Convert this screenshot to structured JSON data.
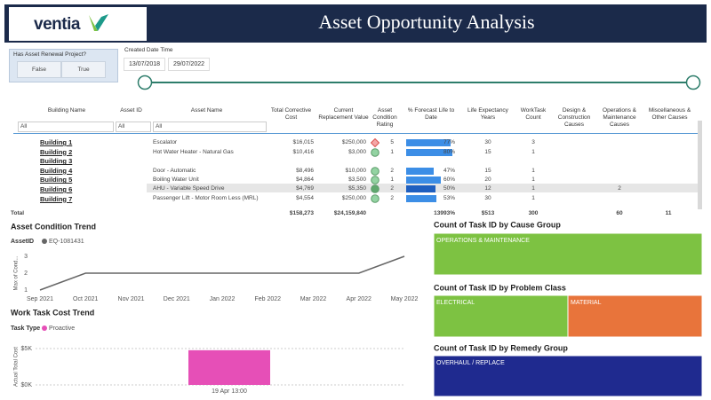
{
  "header": {
    "logo": "ventia",
    "title": "Asset Opportunity Analysis"
  },
  "renewal_slicer": {
    "label": "Has Asset Renewal Project?",
    "options": [
      "False",
      "True"
    ]
  },
  "date_slicer": {
    "label": "Created Date Time",
    "start": "13/07/2018",
    "end": "29/07/2022"
  },
  "table": {
    "columns": [
      "Building Name",
      "Asset ID",
      "Asset Name",
      "Total Corrective Cost",
      "Current Replacement Value",
      "Asset Condition Rating",
      "% Forecast Life to Date",
      "Life Expectancy Years",
      "WorkTask Count",
      "Design & Construction Causes",
      "Operations & Maintenance Causes",
      "Miscellaneous & Other Causes"
    ],
    "filters": [
      "All",
      "All",
      "All"
    ],
    "buildings": [
      "Building 1",
      "Building 2",
      "Building 3",
      "Building 4",
      "Building 5",
      "Building 6",
      "Building 7"
    ],
    "rows": [
      {
        "name": "Escalator",
        "cost": "$16,015",
        "replacement": "$250,000",
        "rating": 5,
        "forecast": {
          "value": 77,
          "label": "77%"
        },
        "life": "30",
        "count": "3"
      },
      {
        "name": "Hot Water Heater - Natural Gas",
        "cost": "$10,416",
        "replacement": "$3,000",
        "rating": 1,
        "forecast": {
          "value": 80,
          "label": "80%"
        },
        "life": "15",
        "count": "1"
      },
      {
        "name": "Door - Automatic",
        "cost": "$8,496",
        "replacement": "$10,000",
        "rating": 2,
        "forecast": {
          "value": 47,
          "label": "47%"
        },
        "life": "15",
        "count": "1"
      },
      {
        "name": "Boiling Water Unit",
        "cost": "$4,864",
        "replacement": "$3,500",
        "rating": 1,
        "forecast": {
          "value": 60,
          "label": "60%"
        },
        "life": "20",
        "count": "1"
      },
      {
        "name": "AHU - Variable Speed Drive",
        "cost": "$4,769",
        "replacement": "$5,350",
        "rating": 2,
        "forecast": {
          "value": 50,
          "label": "50%"
        },
        "life": "12",
        "count": "1",
        "ops": "2"
      },
      {
        "name": "Passenger Lift - Motor Room Less (MRL)",
        "cost": "$4,554",
        "replacement": "$250,000",
        "rating": 2,
        "forecast": {
          "value": 53,
          "label": "53%"
        },
        "life": "30",
        "count": "1"
      }
    ],
    "total": {
      "label": "Total",
      "cost": "$158,273",
      "replacement": "$24,159,840",
      "forecast": "13993%",
      "life": "$513",
      "count": "300",
      "ops": "60",
      "misc": "11"
    }
  },
  "chart_data": [
    {
      "type": "line",
      "title": "Asset Condition Trend",
      "legend_title": "AssetID",
      "y_label": "Max of Cond...",
      "categories": [
        "Sep 2021",
        "Oct 2021",
        "Nov 2021",
        "Dec 2021",
        "Jan 2022",
        "Feb 2022",
        "Mar 2022",
        "Apr 2022",
        "May 2022"
      ],
      "series": [
        {
          "name": "EQ-1081431",
          "color": "#666666",
          "values": [
            1,
            2,
            2,
            2,
            2,
            2,
            2,
            2,
            3
          ]
        }
      ],
      "ylim": [
        1,
        3
      ],
      "yticks": [
        1,
        2,
        3
      ]
    },
    {
      "type": "bar",
      "title": "Work Task Cost Trend",
      "legend_title": "Task Type",
      "y_label": "Actual Total Cost",
      "categories": [
        "19 Apr 13:00"
      ],
      "series": [
        {
          "name": "Proactive",
          "color": "#e64fb7",
          "values": [
            4769
          ]
        }
      ],
      "ylim": [
        0,
        5000
      ],
      "yticks": [
        {
          "value": 0,
          "label": "$0K"
        },
        {
          "value": 5000,
          "label": "$5K"
        }
      ],
      "grid": true
    },
    {
      "type": "treemap",
      "title": "Count of Task ID by Cause Group",
      "categories": [
        "OPERATIONS & MAINTENANCE"
      ],
      "values": [
        60
      ],
      "colors": [
        "#7dc242"
      ]
    },
    {
      "type": "treemap",
      "title": "Count of Task ID by Problem Class",
      "categories": [
        "ELECTRICAL",
        "MATERIAL"
      ],
      "values": [
        30,
        30
      ],
      "colors": [
        "#7dc242",
        "#e8743b"
      ]
    },
    {
      "type": "treemap",
      "title": "Count of Task ID by Remedy Group",
      "categories": [
        "OVERHAUL / REPLACE"
      ],
      "values": [
        60
      ],
      "colors": [
        "#1f2a8f"
      ]
    }
  ]
}
